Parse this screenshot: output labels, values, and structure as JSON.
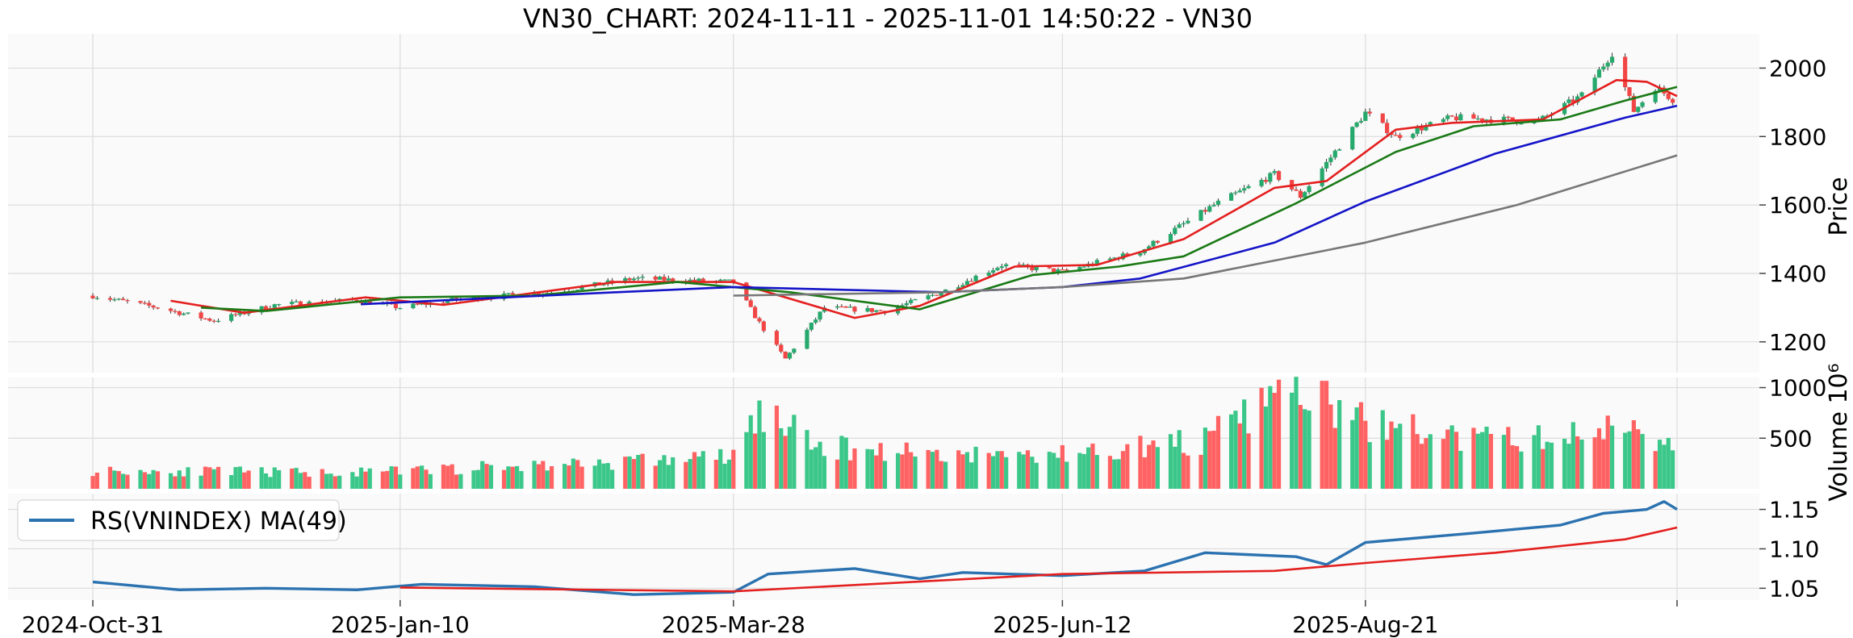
{
  "chart_data": {
    "type": "candlestick",
    "title": "VN30_CHART: 2024-11-11 - 2025-11-01 14:50:22 - VN30",
    "x_ticks": [
      "2024-Oct-31",
      "2025-Jan-10",
      "2025-Mar-28",
      "2025-Jun-12",
      "2025-Aug-21"
    ],
    "x_start": "2024-Oct-31",
    "colors": {
      "up": "#26a96c",
      "down": "#f24545",
      "up_vol": "#3cc78a",
      "down_vol": "#ff6262",
      "rs": "#2b72b0",
      "rs_ma": "#e3201f"
    },
    "price_panel": {
      "ylabel": "Price",
      "ylim": [
        1110,
        2100
      ],
      "y_ticks": [
        1200,
        1400,
        1600,
        1800,
        2000
      ],
      "key_closes": [
        {
          "date": "2024-10-31",
          "close": 1335
        },
        {
          "date": "2024-11-15",
          "close": 1300
        },
        {
          "date": "2024-11-28",
          "close": 1262
        },
        {
          "date": "2024-12-12",
          "close": 1308
        },
        {
          "date": "2024-12-31",
          "close": 1322
        },
        {
          "date": "2025-01-10",
          "close": 1300
        },
        {
          "date": "2025-01-24",
          "close": 1325
        },
        {
          "date": "2025-02-14",
          "close": 1345
        },
        {
          "date": "2025-03-05",
          "close": 1385
        },
        {
          "date": "2025-03-28",
          "close": 1375
        },
        {
          "date": "2025-04-03",
          "close": 1255
        },
        {
          "date": "2025-04-09",
          "close": 1150
        },
        {
          "date": "2025-04-18",
          "close": 1300
        },
        {
          "date": "2025-05-02",
          "close": 1290
        },
        {
          "date": "2025-05-15",
          "close": 1345
        },
        {
          "date": "2025-05-29",
          "close": 1425
        },
        {
          "date": "2025-06-12",
          "close": 1405
        },
        {
          "date": "2025-06-30",
          "close": 1465
        },
        {
          "date": "2025-07-17",
          "close": 1600
        },
        {
          "date": "2025-07-31",
          "close": 1690
        },
        {
          "date": "2025-08-06",
          "close": 1625
        },
        {
          "date": "2025-08-21",
          "close": 1870
        },
        {
          "date": "2025-08-28",
          "close": 1800
        },
        {
          "date": "2025-09-10",
          "close": 1855
        },
        {
          "date": "2025-09-30",
          "close": 1845
        },
        {
          "date": "2025-10-10",
          "close": 1920
        },
        {
          "date": "2025-10-17",
          "close": 2045
        },
        {
          "date": "2025-10-22",
          "close": 1875
        },
        {
          "date": "2025-10-27",
          "close": 1945
        },
        {
          "date": "2025-11-01",
          "close": 1900
        }
      ],
      "moving_averages": {
        "red": [
          {
            "date": "2024-11-18",
            "v": 1320
          },
          {
            "date": "2024-12-05",
            "v": 1285
          },
          {
            "date": "2025-01-02",
            "v": 1330
          },
          {
            "date": "2025-01-20",
            "v": 1308
          },
          {
            "date": "2025-03-01",
            "v": 1375
          },
          {
            "date": "2025-03-28",
            "v": 1375
          },
          {
            "date": "2025-04-25",
            "v": 1270
          },
          {
            "date": "2025-05-10",
            "v": 1305
          },
          {
            "date": "2025-06-01",
            "v": 1420
          },
          {
            "date": "2025-06-20",
            "v": 1425
          },
          {
            "date": "2025-07-10",
            "v": 1500
          },
          {
            "date": "2025-07-31",
            "v": 1650
          },
          {
            "date": "2025-08-12",
            "v": 1670
          },
          {
            "date": "2025-08-28",
            "v": 1820
          },
          {
            "date": "2025-09-10",
            "v": 1840
          },
          {
            "date": "2025-10-01",
            "v": 1850
          },
          {
            "date": "2025-10-18",
            "v": 1965
          },
          {
            "date": "2025-10-25",
            "v": 1960
          },
          {
            "date": "2025-11-01",
            "v": 1918
          }
        ],
        "green": [
          {
            "date": "2024-11-25",
            "v": 1300
          },
          {
            "date": "2024-12-10",
            "v": 1290
          },
          {
            "date": "2025-01-10",
            "v": 1330
          },
          {
            "date": "2025-02-10",
            "v": 1335
          },
          {
            "date": "2025-03-15",
            "v": 1375
          },
          {
            "date": "2025-04-10",
            "v": 1345
          },
          {
            "date": "2025-05-10",
            "v": 1295
          },
          {
            "date": "2025-06-05",
            "v": 1395
          },
          {
            "date": "2025-06-25",
            "v": 1420
          },
          {
            "date": "2025-07-10",
            "v": 1450
          },
          {
            "date": "2025-08-05",
            "v": 1605
          },
          {
            "date": "2025-08-28",
            "v": 1755
          },
          {
            "date": "2025-09-15",
            "v": 1830
          },
          {
            "date": "2025-10-05",
            "v": 1850
          },
          {
            "date": "2025-10-20",
            "v": 1905
          },
          {
            "date": "2025-11-01",
            "v": 1945
          }
        ],
        "blue": [
          {
            "date": "2025-01-01",
            "v": 1310
          },
          {
            "date": "2025-03-01",
            "v": 1345
          },
          {
            "date": "2025-03-28",
            "v": 1360
          },
          {
            "date": "2025-05-15",
            "v": 1345
          },
          {
            "date": "2025-06-12",
            "v": 1360
          },
          {
            "date": "2025-06-30",
            "v": 1385
          },
          {
            "date": "2025-07-31",
            "v": 1490
          },
          {
            "date": "2025-08-21",
            "v": 1610
          },
          {
            "date": "2025-09-20",
            "v": 1750
          },
          {
            "date": "2025-10-20",
            "v": 1855
          },
          {
            "date": "2025-11-01",
            "v": 1890
          }
        ],
        "gray": [
          {
            "date": "2025-03-28",
            "v": 1335
          },
          {
            "date": "2025-05-15",
            "v": 1345
          },
          {
            "date": "2025-06-12",
            "v": 1360
          },
          {
            "date": "2025-07-10",
            "v": 1385
          },
          {
            "date": "2025-08-21",
            "v": 1490
          },
          {
            "date": "2025-09-25",
            "v": 1600
          },
          {
            "date": "2025-11-01",
            "v": 1745
          }
        ]
      }
    },
    "volume_panel": {
      "ylabel": "Volume 10⁶",
      "ylim": [
        0,
        1100
      ],
      "y_ticks": [
        500,
        1000
      ],
      "key_volumes": [
        {
          "date": "2024-10-31",
          "v": 180
        },
        {
          "date": "2024-12-31",
          "v": 160
        },
        {
          "date": "2025-02-20",
          "v": 250
        },
        {
          "date": "2025-03-28",
          "v": 320
        },
        {
          "date": "2025-04-03",
          "v": 760
        },
        {
          "date": "2025-04-09",
          "v": 640
        },
        {
          "date": "2025-04-15",
          "v": 420
        },
        {
          "date": "2025-05-20",
          "v": 340
        },
        {
          "date": "2025-06-12",
          "v": 340
        },
        {
          "date": "2025-07-15",
          "v": 480
        },
        {
          "date": "2025-08-04",
          "v": 990
        },
        {
          "date": "2025-08-21",
          "v": 650
        },
        {
          "date": "2025-09-15",
          "v": 480
        },
        {
          "date": "2025-10-10",
          "v": 520
        },
        {
          "date": "2025-10-21",
          "v": 700
        },
        {
          "date": "2025-11-01",
          "v": 350
        }
      ]
    },
    "rs_panel": {
      "legend": "RS(VNINDEX) MA(49)",
      "legend_position": "upper-left",
      "ylim": [
        1.035,
        1.17
      ],
      "y_ticks": [
        1.05,
        1.1,
        1.15
      ],
      "y_tick_labels": [
        "1.05",
        "1.10",
        "1.15"
      ],
      "rs": [
        {
          "date": "2024-10-31",
          "v": 1.058
        },
        {
          "date": "2024-11-20",
          "v": 1.048
        },
        {
          "date": "2024-12-10",
          "v": 1.05
        },
        {
          "date": "2024-12-31",
          "v": 1.048
        },
        {
          "date": "2025-01-15",
          "v": 1.055
        },
        {
          "date": "2025-02-10",
          "v": 1.052
        },
        {
          "date": "2025-03-05",
          "v": 1.042
        },
        {
          "date": "2025-03-28",
          "v": 1.045
        },
        {
          "date": "2025-04-05",
          "v": 1.068
        },
        {
          "date": "2025-04-25",
          "v": 1.075
        },
        {
          "date": "2025-05-10",
          "v": 1.062
        },
        {
          "date": "2025-05-20",
          "v": 1.07
        },
        {
          "date": "2025-06-12",
          "v": 1.066
        },
        {
          "date": "2025-07-01",
          "v": 1.072
        },
        {
          "date": "2025-07-15",
          "v": 1.095
        },
        {
          "date": "2025-08-05",
          "v": 1.09
        },
        {
          "date": "2025-08-12",
          "v": 1.08
        },
        {
          "date": "2025-08-21",
          "v": 1.108
        },
        {
          "date": "2025-09-15",
          "v": 1.12
        },
        {
          "date": "2025-10-05",
          "v": 1.13
        },
        {
          "date": "2025-10-15",
          "v": 1.145
        },
        {
          "date": "2025-10-25",
          "v": 1.15
        },
        {
          "date": "2025-10-29",
          "v": 1.16
        },
        {
          "date": "2025-11-01",
          "v": 1.15
        }
      ],
      "rs_ma": [
        {
          "date": "2025-01-10",
          "v": 1.051
        },
        {
          "date": "2025-03-28",
          "v": 1.046
        },
        {
          "date": "2025-06-12",
          "v": 1.068
        },
        {
          "date": "2025-07-31",
          "v": 1.072
        },
        {
          "date": "2025-08-21",
          "v": 1.082
        },
        {
          "date": "2025-09-20",
          "v": 1.095
        },
        {
          "date": "2025-10-20",
          "v": 1.112
        },
        {
          "date": "2025-11-01",
          "v": 1.127
        }
      ]
    }
  }
}
